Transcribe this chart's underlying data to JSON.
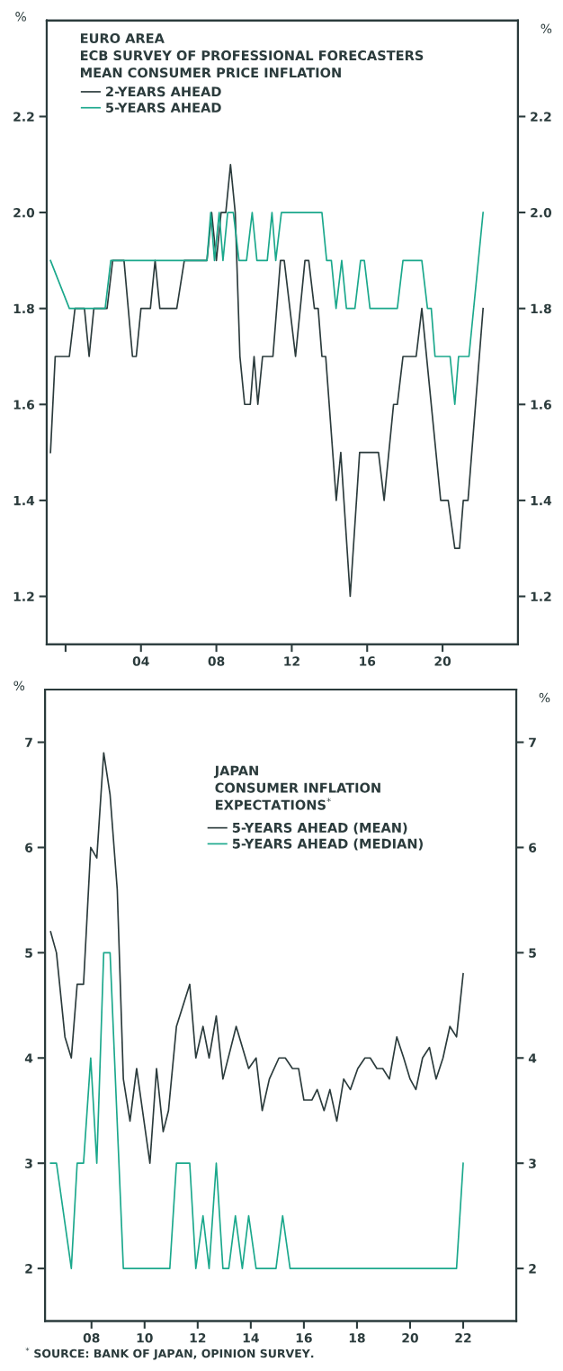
{
  "chart_data": [
    {
      "type": "line",
      "title": "EURO AREA\nECB SURVEY OF PROFESSIONAL FORECASTERS\nMEAN CONSUMER PRICE INFLATION",
      "ylabel": "%",
      "y2label": "%",
      "xlim": [
        1999,
        2024
      ],
      "xticks": [
        {
          "value": 2000,
          "label": null
        },
        {
          "value": 2004,
          "label": "04"
        },
        {
          "value": 2008,
          "label": "08"
        },
        {
          "value": 2012,
          "label": "12"
        },
        {
          "value": 2016,
          "label": "16"
        },
        {
          "value": 2020,
          "label": "20"
        }
      ],
      "ylim": [
        1.1,
        2.4
      ],
      "yticks": [
        1.2,
        1.4,
        1.6,
        1.8,
        {
          "value": 2.0,
          "label": "2.0"
        },
        2.2
      ],
      "y2lim": [
        1.1,
        2.4
      ],
      "y2ticks": [
        1.2,
        1.4,
        1.6,
        1.8,
        {
          "value": 2.0,
          "label": "2.0"
        },
        2.2
      ],
      "grid": false,
      "legend": "top left",
      "marker": "none",
      "line_style": "solid",
      "series": [
        {
          "name": "2-YEARS AHEAD",
          "color": "#2b3b3c",
          "x": [
            1999.2,
            1999.45,
            2000.2,
            2000.5,
            2001.0,
            2001.25,
            2001.5,
            2002.2,
            2002.5,
            2003.1,
            2003.55,
            2003.75,
            2004.0,
            2004.5,
            2004.75,
            2005.0,
            2005.9,
            2006.3,
            2007.5,
            2007.75,
            2008.0,
            2008.25,
            2008.5,
            2008.75,
            2009.0,
            2009.25,
            2009.5,
            2009.8,
            2010.0,
            2010.2,
            2010.45,
            2011.0,
            2011.4,
            2011.6,
            2012.2,
            2012.7,
            2012.9,
            2013.2,
            2013.4,
            2013.6,
            2013.8,
            2014.36,
            2014.6,
            2015.1,
            2015.6,
            2016.6,
            2016.9,
            2017.4,
            2017.6,
            2017.9,
            2018.6,
            2018.9,
            2019.9,
            2020.3,
            2020.65,
            2020.9,
            2021.1,
            2021.35,
            2022.15
          ],
          "values": [
            1.5,
            1.7,
            1.7,
            1.8,
            1.8,
            1.7,
            1.8,
            1.8,
            1.9,
            1.9,
            1.7,
            1.7,
            1.8,
            1.8,
            1.9,
            1.8,
            1.8,
            1.9,
            1.9,
            2.0,
            1.9,
            2.0,
            2.0,
            2.1,
            2.0,
            1.7,
            1.6,
            1.6,
            1.7,
            1.6,
            1.7,
            1.7,
            1.9,
            1.9,
            1.7,
            1.9,
            1.9,
            1.8,
            1.8,
            1.7,
            1.7,
            1.4,
            1.5,
            1.2,
            1.5,
            1.5,
            1.4,
            1.6,
            1.6,
            1.7,
            1.7,
            1.8,
            1.4,
            1.4,
            1.3,
            1.3,
            1.4,
            1.4,
            1.8
          ]
        },
        {
          "name": "5-YEARS AHEAD",
          "color": "#1ba88c",
          "x": [
            1999.2,
            2000.2,
            2002.1,
            2002.4,
            2007.5,
            2007.7,
            2007.9,
            2008.15,
            2008.35,
            2008.6,
            2008.9,
            2009.2,
            2009.6,
            2009.9,
            2010.15,
            2010.7,
            2010.95,
            2011.15,
            2011.45,
            2013.6,
            2013.85,
            2014.1,
            2014.35,
            2014.65,
            2014.9,
            2015.35,
            2015.65,
            2015.85,
            2016.15,
            2017.6,
            2017.9,
            2018.9,
            2019.2,
            2019.4,
            2019.6,
            2020.4,
            2020.65,
            2020.85,
            2021.4,
            2022.15
          ],
          "values": [
            1.9,
            1.8,
            1.8,
            1.9,
            1.9,
            2.0,
            1.9,
            2.0,
            1.9,
            2.0,
            2.0,
            1.9,
            1.9,
            2.0,
            1.9,
            1.9,
            2.0,
            1.9,
            2.0,
            2.0,
            1.9,
            1.9,
            1.8,
            1.9,
            1.8,
            1.8,
            1.9,
            1.9,
            1.8,
            1.8,
            1.9,
            1.9,
            1.8,
            1.8,
            1.7,
            1.7,
            1.6,
            1.7,
            1.7,
            2.0
          ]
        }
      ]
    },
    {
      "type": "line",
      "title": "JAPAN\nCONSUMER INFLATION\nEXPECTATIONS$^{*}$",
      "ylabel": "%",
      "y2label": "%",
      "xlim": [
        2006.25,
        2024
      ],
      "xticks": [
        {
          "value": 2008,
          "label": "08"
        },
        {
          "value": 2010,
          "label": "10"
        },
        {
          "value": 2012,
          "label": "12"
        },
        {
          "value": 2014,
          "label": "14"
        },
        {
          "value": 2016,
          "label": "16"
        },
        {
          "value": 2018,
          "label": "18"
        },
        {
          "value": 2020,
          "label": "20"
        },
        {
          "value": 2022,
          "label": "22"
        }
      ],
      "ylim": [
        1.5,
        7.5
      ],
      "yticks": [
        2,
        3,
        4,
        5,
        6,
        7
      ],
      "y2lim": [
        1.5,
        7.5
      ],
      "y2ticks": [
        2,
        3,
        4,
        5,
        6,
        7
      ],
      "grid": false,
      "legend": "top",
      "marker": "none",
      "line_style": "solid",
      "annotations": [
        "$^{*}$ SOURCE: BANK OF JAPAN, OPINION SURVEY."
      ],
      "series": [
        {
          "name": "5-YEARS AHEAD (MEAN)",
          "color": "#2b3b3c",
          "x": [
            2006.46,
            2006.68,
            2007.0,
            2007.24,
            2007.46,
            2007.7,
            2007.97,
            2008.2,
            2008.46,
            2008.7,
            2008.97,
            2009.2,
            2009.45,
            2009.7,
            2010.2,
            2010.45,
            2010.7,
            2010.9,
            2011.2,
            2011.7,
            2011.93,
            2012.2,
            2012.43,
            2012.7,
            2012.95,
            2013.45,
            2013.92,
            2014.2,
            2014.43,
            2014.7,
            2015.06,
            2015.3,
            2015.57,
            2015.8,
            2016.0,
            2016.3,
            2016.5,
            2016.76,
            2016.98,
            2017.24,
            2017.5,
            2017.75,
            2018.03,
            2018.3,
            2018.5,
            2018.75,
            2018.97,
            2019.22,
            2019.5,
            2019.76,
            2020.0,
            2020.22,
            2020.47,
            2020.73,
            2020.98,
            2021.24,
            2021.5,
            2021.75,
            2022.0
          ],
          "values": [
            5.2,
            5.0,
            4.2,
            4.0,
            4.7,
            4.7,
            6.0,
            5.9,
            6.9,
            6.5,
            5.6,
            3.8,
            3.4,
            3.9,
            3.0,
            3.9,
            3.3,
            3.5,
            4.3,
            4.7,
            4.0,
            4.3,
            4.0,
            4.4,
            3.8,
            4.3,
            3.9,
            4.0,
            3.5,
            3.8,
            4.0,
            4.0,
            3.9,
            3.9,
            3.6,
            3.6,
            3.7,
            3.5,
            3.7,
            3.4,
            3.8,
            3.7,
            3.9,
            4.0,
            4.0,
            3.9,
            3.9,
            3.8,
            4.2,
            4.0,
            3.8,
            3.7,
            4.0,
            4.1,
            3.8,
            4.0,
            4.3,
            4.2,
            4.8
          ]
        },
        {
          "name": "5-YEARS AHEAD (MEDIAN)",
          "color": "#1ba88c",
          "x": [
            2006.46,
            2006.68,
            2007.24,
            2007.46,
            2007.7,
            2007.97,
            2008.2,
            2008.46,
            2008.7,
            2009.2,
            2010.95,
            2011.2,
            2011.7,
            2011.93,
            2012.2,
            2012.43,
            2012.7,
            2012.95,
            2013.17,
            2013.42,
            2013.68,
            2013.92,
            2014.2,
            2014.95,
            2015.2,
            2015.48,
            2021.75,
            2022.0
          ],
          "values": [
            3.0,
            3.0,
            2.0,
            3.0,
            3.0,
            4.0,
            3.0,
            5.0,
            5.0,
            2.0,
            2.0,
            3.0,
            3.0,
            2.0,
            2.5,
            2.0,
            3.0,
            2.0,
            2.0,
            2.5,
            2.0,
            2.5,
            2.0,
            2.0,
            2.5,
            2.0,
            2.0,
            3.0
          ]
        }
      ]
    }
  ]
}
